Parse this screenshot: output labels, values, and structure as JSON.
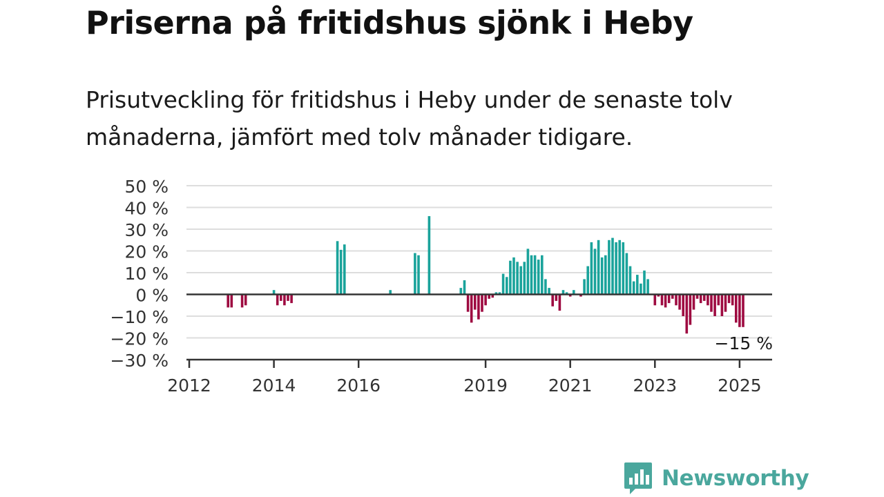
{
  "title": "Priserna på fritidshus sjönk i Heby",
  "subtitle": "Prisutveckling för fritidshus i Heby under de senaste tolv månaderna, jämfört med tolv månader tidigare.",
  "brand": {
    "name": "Newsworthy"
  },
  "colors": {
    "positive": "#1aa39b",
    "negative": "#9e0b41",
    "grid": "#dddddd",
    "axis": "#333333",
    "brand": "#4aa79d"
  },
  "chart_data": {
    "type": "bar",
    "x_unit": "month",
    "x_start": "2012-01",
    "x_end": "2025-06",
    "ylim": [
      -30,
      50
    ],
    "yticks": [
      50,
      40,
      30,
      20,
      10,
      0,
      -10,
      -20,
      -30
    ],
    "ytick_labels": [
      "50 %",
      "40 %",
      "30 %",
      "20 %",
      "10 %",
      "0 %",
      "−10 %",
      "−20 %",
      "−30 %"
    ],
    "xticks": [
      "2012",
      "2014",
      "2016",
      "2019",
      "2021",
      "2023",
      "2025"
    ],
    "grid": true,
    "last_value_label": "−15 %",
    "months": [
      "2012-12",
      "2013-01",
      "2013-04",
      "2013-05",
      "2014-01",
      "2014-02",
      "2014-03",
      "2014-04",
      "2014-05",
      "2014-06",
      "2014-07",
      "2015-07",
      "2015-08",
      "2015-09",
      "2016-10",
      "2017-05",
      "2017-06",
      "2017-09",
      "2018-06",
      "2018-07",
      "2018-08",
      "2018-09",
      "2018-10",
      "2018-11",
      "2018-12",
      "2019-01",
      "2019-02",
      "2019-03",
      "2019-04",
      "2019-05",
      "2019-06",
      "2019-07",
      "2019-08",
      "2019-09",
      "2019-10",
      "2019-11",
      "2019-12",
      "2020-01",
      "2020-02",
      "2020-03",
      "2020-04",
      "2020-05",
      "2020-06",
      "2020-07",
      "2020-08",
      "2020-09",
      "2020-10",
      "2020-11",
      "2020-12",
      "2021-01",
      "2021-02",
      "2021-04",
      "2021-05",
      "2021-06",
      "2021-07",
      "2021-08",
      "2021-09",
      "2021-10",
      "2021-11",
      "2021-12",
      "2022-01",
      "2022-02",
      "2022-03",
      "2022-04",
      "2022-05",
      "2022-06",
      "2022-07",
      "2022-08",
      "2022-09",
      "2022-10",
      "2022-11",
      "2023-01",
      "2023-02",
      "2023-03",
      "2023-04",
      "2023-05",
      "2023-06",
      "2023-07",
      "2023-08",
      "2023-09",
      "2023-10",
      "2023-11",
      "2023-12",
      "2024-01",
      "2024-02",
      "2024-03",
      "2024-04",
      "2024-05",
      "2024-06",
      "2024-07",
      "2024-08",
      "2024-09",
      "2024-10",
      "2024-11",
      "2024-12",
      "2025-01",
      "2025-02"
    ],
    "values": [
      -6,
      -6,
      -6,
      -5,
      2,
      -5,
      -3,
      -5,
      -3,
      -4,
      0,
      24.5,
      20.5,
      23,
      2,
      19,
      18,
      36,
      3,
      6.5,
      -8,
      -13,
      -7,
      -11.5,
      -8,
      -5,
      -2,
      -1.5,
      1,
      1,
      9.5,
      8,
      15.5,
      17,
      15,
      13,
      15,
      21,
      18,
      18,
      16,
      18,
      7,
      3,
      -5.5,
      -3,
      -7.5,
      2,
      1,
      -1,
      2,
      -1,
      7,
      13,
      24,
      21,
      25,
      17,
      18,
      25,
      26,
      24,
      25,
      24,
      19,
      13,
      6,
      9,
      5,
      11,
      7,
      -5,
      -1,
      -5,
      -6,
      -4,
      -2,
      -5,
      -7,
      -10,
      -18,
      -14,
      -7,
      -2,
      -4,
      -3,
      -5,
      -8,
      -10,
      -5,
      -10,
      -8,
      -4,
      -5,
      -13,
      -15,
      -15
    ]
  }
}
